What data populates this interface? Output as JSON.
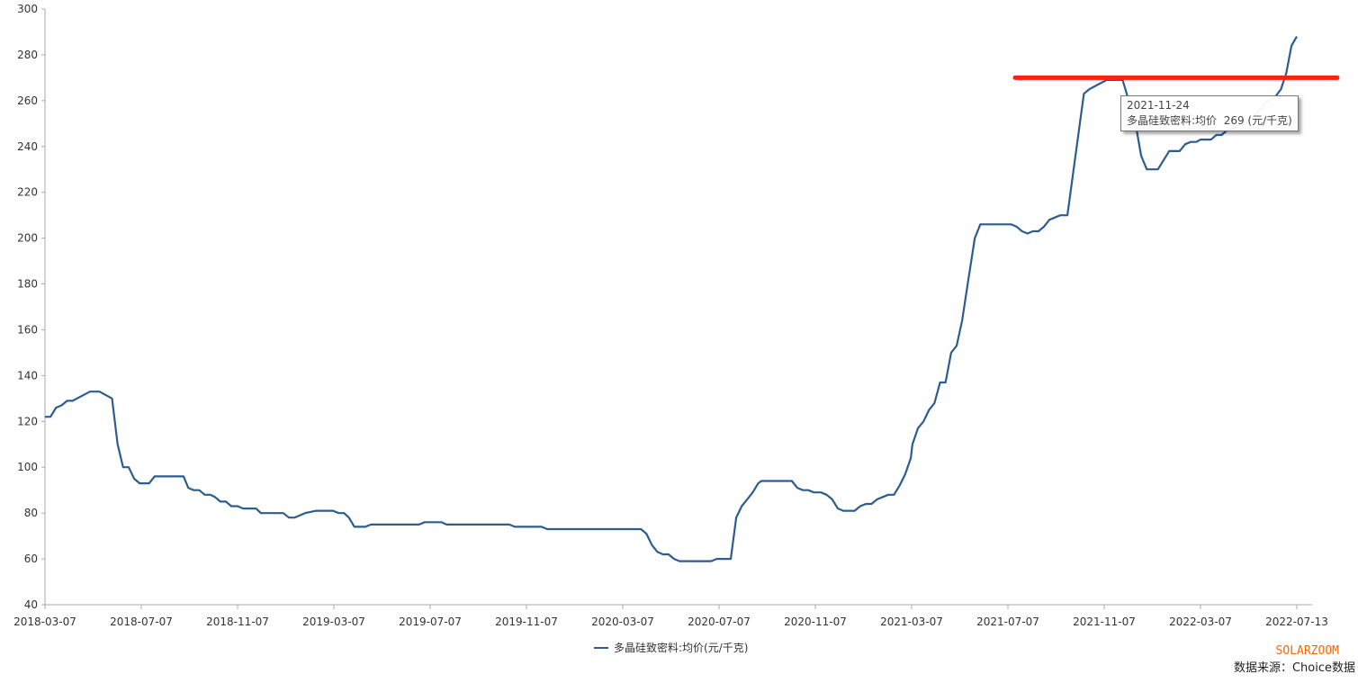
{
  "chart_data": {
    "type": "line",
    "title": "",
    "xlabel": "",
    "ylabel": "",
    "ylim": [
      40,
      300
    ],
    "yticks": [
      40,
      60,
      80,
      100,
      120,
      140,
      160,
      180,
      200,
      220,
      240,
      260,
      280,
      300
    ],
    "xticks": [
      "2018-03-07",
      "2018-07-07",
      "2018-11-07",
      "2019-03-07",
      "2019-07-07",
      "2019-11-07",
      "2020-03-07",
      "2020-07-07",
      "2020-11-07",
      "2021-03-07",
      "2021-07-07",
      "2021-11-07",
      "2022-03-07",
      "2022-07-13"
    ],
    "grid": false,
    "legend_position": "bottom",
    "series": [
      {
        "name": "多晶硅致密料:均价(元/千克)",
        "color": "#2d5d8f",
        "points": [
          [
            "2018-03-07",
            122
          ],
          [
            "2018-03-14",
            122
          ],
          [
            "2018-03-21",
            126
          ],
          [
            "2018-03-28",
            127
          ],
          [
            "2018-04-04",
            129
          ],
          [
            "2018-04-11",
            129
          ],
          [
            "2018-04-22",
            131
          ],
          [
            "2018-05-03",
            133
          ],
          [
            "2018-05-15",
            133
          ],
          [
            "2018-05-31",
            130
          ],
          [
            "2018-06-07",
            110
          ],
          [
            "2018-06-14",
            100
          ],
          [
            "2018-06-21",
            100
          ],
          [
            "2018-06-28",
            95
          ],
          [
            "2018-07-05",
            93
          ],
          [
            "2018-07-17",
            93
          ],
          [
            "2018-07-24",
            96
          ],
          [
            "2018-08-30",
            96
          ],
          [
            "2018-09-05",
            91
          ],
          [
            "2018-09-12",
            90
          ],
          [
            "2018-09-19",
            90
          ],
          [
            "2018-09-26",
            88
          ],
          [
            "2018-10-03",
            88
          ],
          [
            "2018-10-09",
            87
          ],
          [
            "2018-10-16",
            85
          ],
          [
            "2018-10-23",
            85
          ],
          [
            "2018-10-30",
            83
          ],
          [
            "2018-11-07",
            83
          ],
          [
            "2018-11-14",
            82
          ],
          [
            "2018-11-30",
            82
          ],
          [
            "2018-12-06",
            80
          ],
          [
            "2019-01-03",
            80
          ],
          [
            "2019-01-10",
            78
          ],
          [
            "2019-01-17",
            78
          ],
          [
            "2019-01-30",
            80
          ],
          [
            "2019-02-13",
            81
          ],
          [
            "2019-03-06",
            81
          ],
          [
            "2019-03-13",
            80
          ],
          [
            "2019-03-20",
            80
          ],
          [
            "2019-03-26",
            78
          ],
          [
            "2019-04-02",
            74
          ],
          [
            "2019-04-16",
            74
          ],
          [
            "2019-04-23",
            75
          ],
          [
            "2019-06-23",
            75
          ],
          [
            "2019-06-30",
            76
          ],
          [
            "2019-07-21",
            76
          ],
          [
            "2019-07-28",
            75
          ],
          [
            "2019-10-16",
            75
          ],
          [
            "2019-10-23",
            74
          ],
          [
            "2019-11-26",
            74
          ],
          [
            "2019-12-03",
            73
          ],
          [
            "2020-03-30",
            73
          ],
          [
            "2020-04-06",
            71
          ],
          [
            "2020-04-13",
            66
          ],
          [
            "2020-04-20",
            63
          ],
          [
            "2020-04-27",
            62
          ],
          [
            "2020-05-04",
            62
          ],
          [
            "2020-05-11",
            60
          ],
          [
            "2020-05-18",
            59
          ],
          [
            "2020-06-27",
            59
          ],
          [
            "2020-07-04",
            60
          ],
          [
            "2020-07-22",
            60
          ],
          [
            "2020-07-29",
            78
          ],
          [
            "2020-08-05",
            83
          ],
          [
            "2020-08-12",
            86
          ],
          [
            "2020-08-19",
            89
          ],
          [
            "2020-08-26",
            93
          ],
          [
            "2020-08-30",
            94
          ],
          [
            "2020-10-08",
            94
          ],
          [
            "2020-10-15",
            91
          ],
          [
            "2020-10-22",
            90
          ],
          [
            "2020-10-29",
            90
          ],
          [
            "2020-11-05",
            89
          ],
          [
            "2020-11-14",
            89
          ],
          [
            "2020-11-21",
            88
          ],
          [
            "2020-11-28",
            86
          ],
          [
            "2020-12-05",
            82
          ],
          [
            "2020-12-12",
            81
          ],
          [
            "2020-12-26",
            81
          ],
          [
            "2021-01-02",
            83
          ],
          [
            "2021-01-09",
            84
          ],
          [
            "2021-01-16",
            84
          ],
          [
            "2021-01-23",
            86
          ],
          [
            "2021-01-30",
            87
          ],
          [
            "2021-02-06",
            88
          ],
          [
            "2021-02-13",
            88
          ],
          [
            "2021-02-20",
            92
          ],
          [
            "2021-02-27",
            97
          ],
          [
            "2021-03-06",
            104
          ],
          [
            "2021-03-08",
            110
          ],
          [
            "2021-03-15",
            117
          ],
          [
            "2021-03-22",
            120
          ],
          [
            "2021-03-29",
            125
          ],
          [
            "2021-04-05",
            128
          ],
          [
            "2021-04-12",
            137
          ],
          [
            "2021-04-19",
            137
          ],
          [
            "2021-04-26",
            150
          ],
          [
            "2021-05-03",
            153
          ],
          [
            "2021-05-10",
            164
          ],
          [
            "2021-05-17",
            180
          ],
          [
            "2021-05-26",
            200
          ],
          [
            "2021-06-02",
            206
          ],
          [
            "2021-07-11",
            206
          ],
          [
            "2021-07-18",
            205
          ],
          [
            "2021-07-25",
            203
          ],
          [
            "2021-08-01",
            202
          ],
          [
            "2021-08-08",
            203
          ],
          [
            "2021-08-15",
            203
          ],
          [
            "2021-08-22",
            205
          ],
          [
            "2021-08-29",
            208
          ],
          [
            "2021-09-05",
            209
          ],
          [
            "2021-09-12",
            210
          ],
          [
            "2021-09-21",
            210
          ],
          [
            "2021-10-12",
            263
          ],
          [
            "2021-10-19",
            265
          ],
          [
            "2021-10-30",
            267
          ],
          [
            "2021-11-10",
            269
          ],
          [
            "2021-11-30",
            269
          ],
          [
            "2021-12-16",
            250
          ],
          [
            "2021-12-23",
            236
          ],
          [
            "2021-12-30",
            230
          ],
          [
            "2022-01-13",
            230
          ],
          [
            "2022-01-27",
            238
          ],
          [
            "2022-02-09",
            238
          ],
          [
            "2022-02-16",
            241
          ],
          [
            "2022-02-23",
            242
          ],
          [
            "2022-03-02",
            242
          ],
          [
            "2022-03-07",
            243
          ],
          [
            "2022-03-21",
            243
          ],
          [
            "2022-03-28",
            245
          ],
          [
            "2022-04-04",
            245
          ],
          [
            "2022-04-11",
            247
          ],
          [
            "2022-04-20",
            248
          ],
          [
            "2022-05-04",
            250
          ],
          [
            "2022-05-18",
            254
          ],
          [
            "2022-05-25",
            256
          ],
          [
            "2022-06-01",
            259
          ],
          [
            "2022-06-15",
            262
          ],
          [
            "2022-06-22",
            265
          ],
          [
            "2022-06-29",
            272
          ],
          [
            "2022-07-06",
            284
          ],
          [
            "2022-07-13",
            288
          ]
        ]
      }
    ],
    "annotations": [
      {
        "type": "horizontal-line",
        "value": 270,
        "from": "2021-07-07",
        "color": "#ff2015"
      }
    ],
    "tooltip": {
      "date": "2021-11-24",
      "label": "多晶硅致密料:均价",
      "value": "269",
      "unit": "(元/千克)"
    }
  },
  "footer": {
    "brand": "SOLARZOOM",
    "source": "数据来源：Choice数据"
  }
}
